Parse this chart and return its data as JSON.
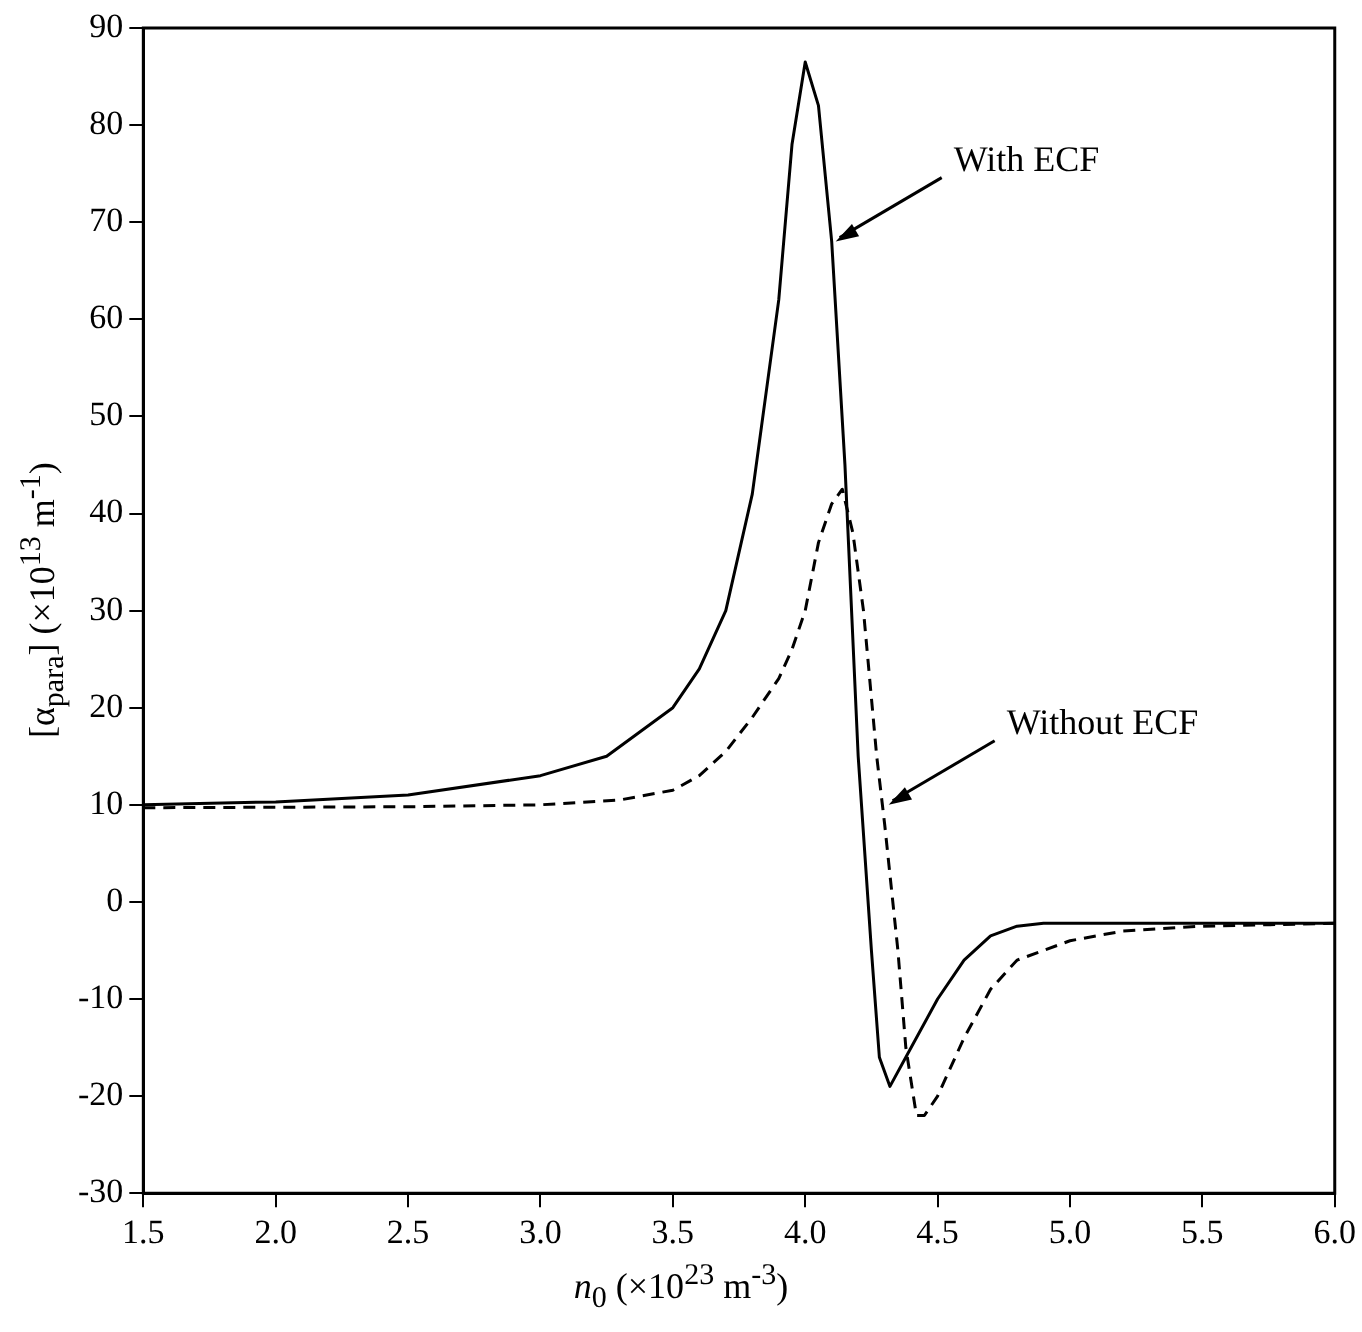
{
  "chart_data": {
    "type": "line",
    "xlabel": "n$_{0}$ (×10$^{23}$ m$^{-3}$)",
    "ylabel": "[α$_{para}$] (×10$^{13}$ m$^{-1}$)",
    "xlim": [
      1.5,
      6.0
    ],
    "xticks": [
      1.5,
      {
        "value": 2,
        "label": "2.0"
      },
      2.5,
      {
        "value": 3,
        "label": "3.0"
      },
      3.5,
      {
        "value": 4,
        "label": "4.0"
      },
      4.5,
      {
        "value": 5,
        "label": "5.0"
      },
      5.5,
      {
        "value": 6,
        "label": "6.0"
      }
    ],
    "ylim": [
      -30,
      90
    ],
    "yticks": [
      -30,
      -20,
      -10,
      0,
      10,
      20,
      30,
      40,
      50,
      60,
      70,
      80,
      90
    ],
    "grid": false,
    "legend": false,
    "marker": "none",
    "series": [
      {
        "color": "#000000",
        "line_style": "solid",
        "x": [
          1.5,
          2.0,
          2.5,
          3.0,
          3.25,
          3.5,
          3.6,
          3.7,
          3.8,
          3.9,
          3.95,
          4.0,
          4.05,
          4.1,
          4.15,
          4.2,
          4.25,
          4.28,
          4.32,
          4.4,
          4.5,
          4.6,
          4.7,
          4.8,
          4.9,
          5.0,
          6.0
        ],
        "values": [
          10,
          10.3,
          11,
          13,
          15,
          20,
          24,
          30,
          42,
          62,
          78,
          86.5,
          82,
          68,
          45,
          15,
          -5,
          -16,
          -19,
          -15,
          -10,
          -6,
          -3.5,
          -2.5,
          -2.2,
          -2.2,
          -2.2
        ]
      },
      {
        "color": "#000000",
        "line_style": "dashed",
        "x": [
          1.5,
          2.5,
          3.0,
          3.3,
          3.5,
          3.6,
          3.7,
          3.8,
          3.9,
          3.95,
          4.0,
          4.05,
          4.1,
          4.14,
          4.18,
          4.22,
          4.27,
          4.3,
          4.35,
          4.38,
          4.42,
          4.45,
          4.5,
          4.6,
          4.7,
          4.8,
          5.0,
          5.2,
          5.5,
          6.0
        ],
        "values": [
          9.7,
          9.8,
          10,
          10.5,
          11.5,
          13,
          15.5,
          19,
          23,
          26,
          30,
          37,
          41,
          42.5,
          38,
          30,
          15,
          8,
          -5,
          -15,
          -22,
          -22,
          -20,
          -14,
          -9,
          -6,
          -4,
          -3,
          -2.5,
          -2.2
        ]
      }
    ],
    "annotations": [
      {
        "text": "With ECF",
        "x": 4.1,
        "y": 68
      },
      {
        "text": "Without ECF",
        "x": 4.3,
        "y": 10
      }
    ]
  }
}
